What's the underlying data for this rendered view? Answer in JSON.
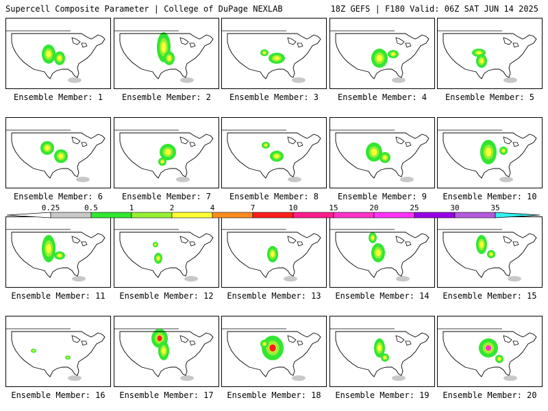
{
  "header": {
    "title_left": "Supercell Composite Parameter | College of DuPage NEXLAB",
    "title_right": "18Z GEFS | F180 Valid: 06Z SAT JUN 14 2025"
  },
  "members": [
    {
      "label": "Ensemble Member: 1"
    },
    {
      "label": "Ensemble Member: 2"
    },
    {
      "label": "Ensemble Member: 3"
    },
    {
      "label": "Ensemble Member: 4"
    },
    {
      "label": "Ensemble Member: 5"
    },
    {
      "label": "Ensemble Member: 6"
    },
    {
      "label": "Ensemble Member: 7"
    },
    {
      "label": "Ensemble Member: 8"
    },
    {
      "label": "Ensemble Member: 9"
    },
    {
      "label": "Ensemble Member: 10"
    },
    {
      "label": "Ensemble Member: 11"
    },
    {
      "label": "Ensemble Member: 12"
    },
    {
      "label": "Ensemble Member: 13"
    },
    {
      "label": "Ensemble Member: 14"
    },
    {
      "label": "Ensemble Member: 15"
    },
    {
      "label": "Ensemble Member: 16"
    },
    {
      "label": "Ensemble Member: 17"
    },
    {
      "label": "Ensemble Member: 18"
    },
    {
      "label": "Ensemble Member: 19"
    },
    {
      "label": "Ensemble Member: 20"
    }
  ],
  "colorbar": {
    "ticks": [
      "0.25",
      "0.5",
      "1",
      "2",
      "4",
      "7",
      "10",
      "15",
      "20",
      "25",
      "30",
      "35"
    ],
    "colors": [
      "#c8c8c8",
      "#32e632",
      "#96f032",
      "#ffff32",
      "#ff8c1e",
      "#ff1e1e",
      "#ff1e8c",
      "#ff32c8",
      "#ff32ff",
      "#9600e6",
      "#b45adc",
      "#32f0f0"
    ]
  }
}
